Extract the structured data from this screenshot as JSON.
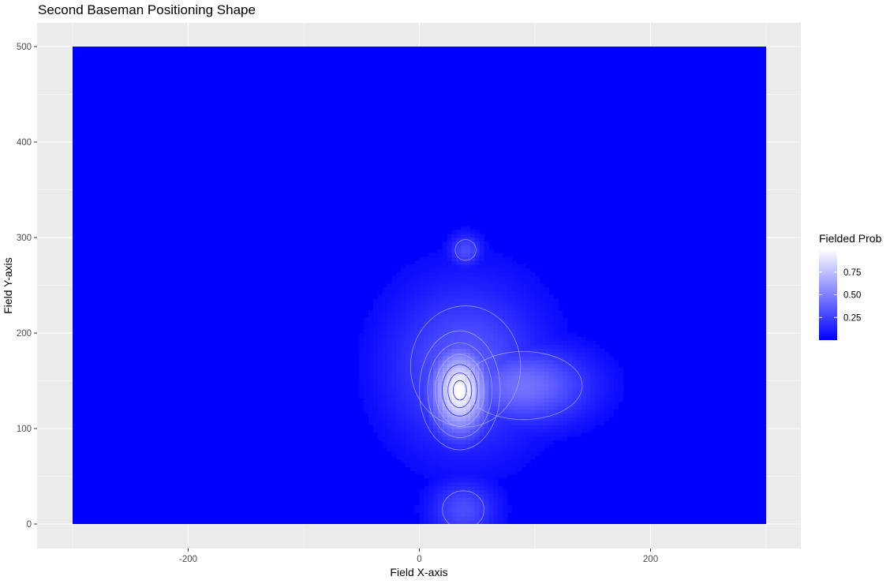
{
  "chart_data": {
    "type": "heatmap",
    "title": "Second Baseman Positioning Shape",
    "xlabel": "Field X-axis",
    "ylabel": "Field Y-axis",
    "xlim": [
      -300,
      300
    ],
    "ylim": [
      0,
      500
    ],
    "x_ticks": [
      -200,
      0,
      200
    ],
    "y_ticks": [
      0,
      100,
      200,
      300,
      400,
      500
    ],
    "grid": true,
    "legend": {
      "title": "Fielded Prob",
      "placement": "right",
      "ticks": [
        0.25,
        0.5,
        0.75
      ],
      "tick_labels": [
        "0.25",
        "0.50",
        "0.75"
      ],
      "low_color": "#0000ff",
      "high_color": "#ffffff"
    },
    "fill_range": [
      0,
      1
    ],
    "background_color": "#0000ff",
    "hotspots": [
      {
        "x": 35,
        "y": 140,
        "sx": 18,
        "sy": 32,
        "value": 1.0
      },
      {
        "x": 90,
        "y": 145,
        "sx": 40,
        "sy": 28,
        "value": 0.45
      },
      {
        "x": 40,
        "y": 165,
        "sx": 45,
        "sy": 60,
        "value": 0.35
      },
      {
        "x": 40,
        "y": 287,
        "sx": 10,
        "sy": 12,
        "value": 0.3
      },
      {
        "x": 38,
        "y": 15,
        "sx": 20,
        "sy": 22,
        "value": 0.3
      }
    ]
  }
}
